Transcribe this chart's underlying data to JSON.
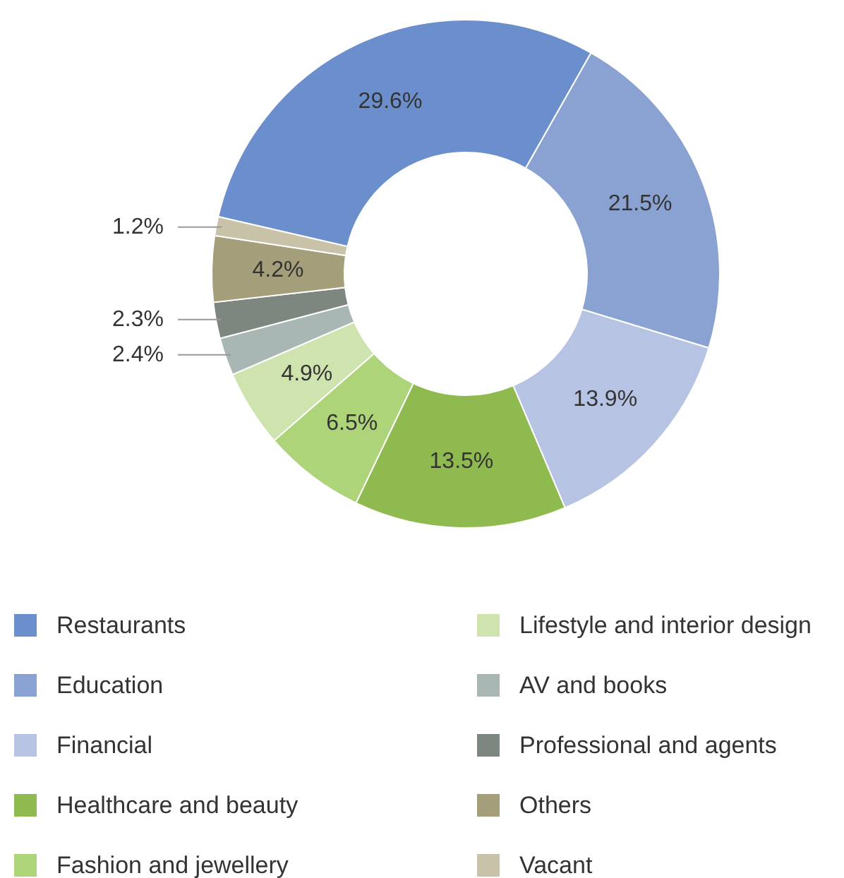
{
  "chart_data": {
    "type": "donut",
    "categories": [
      "Restaurants",
      "Education",
      "Financial",
      "Healthcare and beauty",
      "Fashion and jewellery",
      "Lifestyle and interior design",
      "AV and books",
      "Professional and agents",
      "Others",
      "Vacant"
    ],
    "values": [
      29.6,
      21.5,
      13.9,
      13.5,
      6.5,
      4.9,
      2.4,
      2.3,
      4.2,
      1.2
    ],
    "colors": [
      "#6b8fcc",
      "#8aa2d2",
      "#b7c3e3",
      "#8fba50",
      "#aed47a",
      "#cfe3ae",
      "#a9b7b4",
      "#7d877f",
      "#a59e7a",
      "#c8c2a8"
    ],
    "value_labels": [
      "29.6%",
      "21.5%",
      "13.9%",
      "13.5%",
      "6.5%",
      "4.9%",
      "2.4%",
      "2.3%",
      "4.2%",
      "1.2%"
    ],
    "legend": "bottom"
  }
}
